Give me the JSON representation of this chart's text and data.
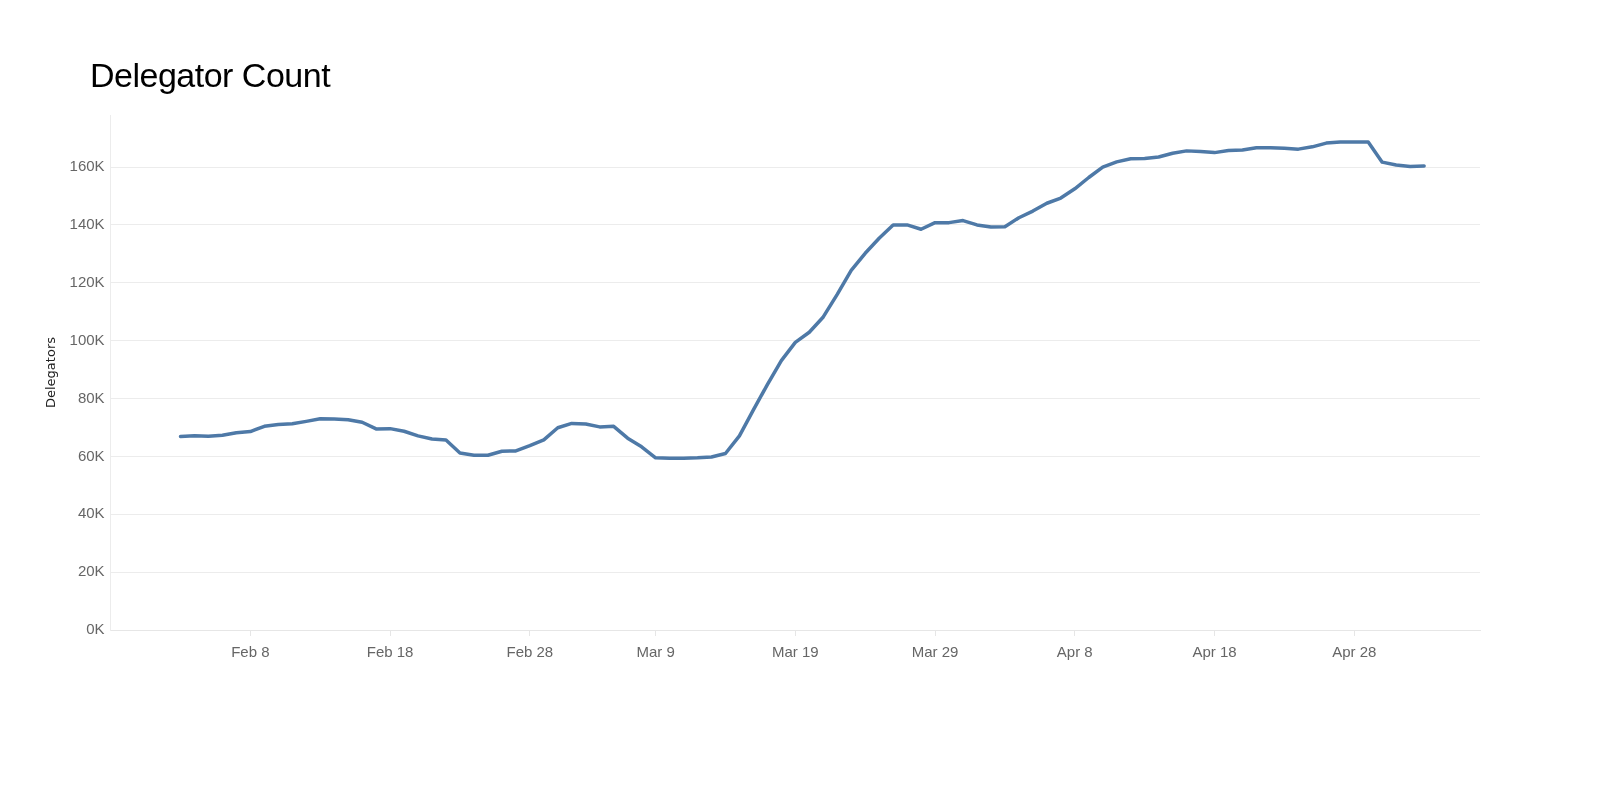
{
  "chart_data": {
    "type": "line",
    "title": "Delegator Count",
    "ylabel": "Delegators",
    "x": [
      "--02-03",
      "--02-04",
      "--02-05",
      "--02-06",
      "--02-07",
      "--02-08",
      "--02-09",
      "--02-10",
      "--02-11",
      "--02-12",
      "--02-13",
      "--02-14",
      "--02-15",
      "--02-16",
      "--02-17",
      "--02-18",
      "--02-19",
      "--02-20",
      "--02-21",
      "--02-22",
      "--02-23",
      "--02-24",
      "--02-25",
      "--02-26",
      "--02-27",
      "--02-28",
      "--03-01",
      "--03-02",
      "--03-03",
      "--03-04",
      "--03-05",
      "--03-06",
      "--03-07",
      "--03-08",
      "--03-09",
      "--03-10",
      "--03-11",
      "--03-12",
      "--03-13",
      "--03-14",
      "--03-15",
      "--03-16",
      "--03-17",
      "--03-18",
      "--03-19",
      "--03-20",
      "--03-21",
      "--03-22",
      "--03-23",
      "--03-24",
      "--03-25",
      "--03-26",
      "--03-27",
      "--03-28",
      "--03-29",
      "--03-30",
      "--03-31",
      "--04-01",
      "--04-02",
      "--04-03",
      "--04-04",
      "--04-05",
      "--04-06",
      "--04-07",
      "--04-08",
      "--04-09",
      "--04-10",
      "--04-11",
      "--04-12",
      "--04-13",
      "--04-14",
      "--04-15",
      "--04-16",
      "--04-17",
      "--04-18",
      "--04-19",
      "--04-20",
      "--04-21",
      "--04-22",
      "--04-23",
      "--04-24",
      "--04-25",
      "--04-26",
      "--04-27",
      "--04-28",
      "--04-29",
      "--04-30",
      "--05-01",
      "--05-02",
      "--05-03"
    ],
    "series": [
      {
        "color": "#4e79a7",
        "values": [
          66900,
          67100,
          67000,
          67300,
          68200,
          68600,
          70400,
          71000,
          71300,
          72100,
          73000,
          72900,
          72700,
          71800,
          69500,
          69600,
          68700,
          67100,
          66000,
          65700,
          61200,
          60400,
          60400,
          61800,
          61900,
          63700,
          65700,
          69900,
          71400,
          71200,
          70200,
          70400,
          66300,
          63300,
          59500,
          59400,
          59400,
          59500,
          59800,
          61000,
          67100,
          76100,
          84800,
          93100,
          99400,
          102900,
          108200,
          116000,
          124300,
          130200,
          135400,
          140000,
          140000,
          138500,
          140800,
          140800,
          141500,
          140000,
          139300,
          139400,
          142500,
          144800,
          147500,
          149300,
          152500,
          156400,
          160000,
          161800,
          162900,
          163000,
          163500,
          164800,
          165600,
          165400,
          165000,
          165700,
          165900,
          166700,
          166700,
          166500,
          166200,
          167000,
          168300,
          168700,
          168700,
          168700,
          161700,
          160700,
          160200,
          160400
        ]
      }
    ],
    "xlim": [
      "--01-29",
      "--05-07"
    ],
    "xticks": [
      {
        "value": "--02-08",
        "label": "Feb 8"
      },
      {
        "value": "--02-18",
        "label": "Feb 18"
      },
      {
        "value": "--02-28",
        "label": "Feb 28"
      },
      {
        "value": "--03-09",
        "label": "Mar 9"
      },
      {
        "value": "--03-19",
        "label": "Mar 19"
      },
      {
        "value": "--03-29",
        "label": "Mar 29"
      },
      {
        "value": "--04-08",
        "label": "Apr 8"
      },
      {
        "value": "--04-18",
        "label": "Apr 18"
      },
      {
        "value": "--04-28",
        "label": "Apr 28"
      }
    ],
    "ylim": [
      0,
      178000
    ],
    "yticks": [
      {
        "value": 0,
        "label": "0K"
      },
      {
        "value": 20000,
        "label": "20K"
      },
      {
        "value": 40000,
        "label": "40K"
      },
      {
        "value": 60000,
        "label": "60K"
      },
      {
        "value": 80000,
        "label": "80K"
      },
      {
        "value": 100000,
        "label": "100K"
      },
      {
        "value": 120000,
        "label": "120K"
      },
      {
        "value": 140000,
        "label": "140K"
      },
      {
        "value": 160000,
        "label": "160K"
      }
    ],
    "grid": "y",
    "legend": false,
    "marker": "none",
    "line_style": "solid"
  }
}
